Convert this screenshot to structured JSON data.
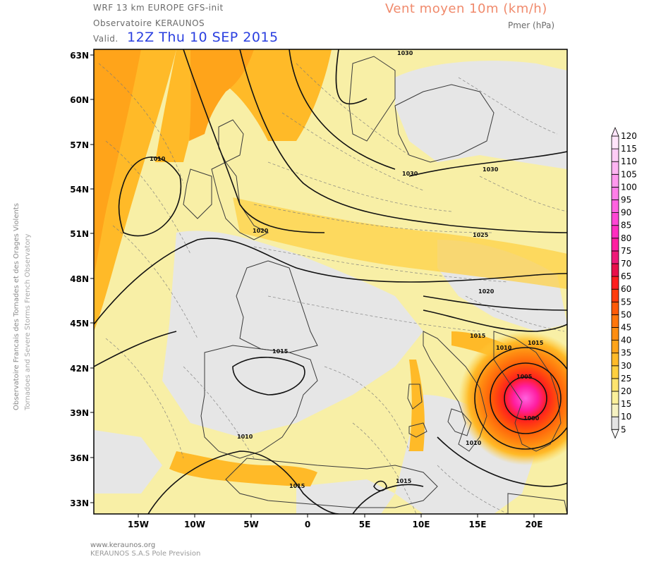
{
  "header": {
    "model_line": "WRF 13 km EUROPE  GFS-init",
    "observatory": "Observatoire KERAUNOS",
    "valid_label": "Valid.",
    "valid_date": "12Z Thu 10 SEP 2015",
    "title": "Vent moyen 10m (km/h)",
    "subtitle": "Pmer (hPa)"
  },
  "side_text": {
    "line1": "Observatoire Francais des Tornades et des Orages Violents",
    "line2": "Tornadoes and Severe Storms French Observatory"
  },
  "footer": {
    "url": "www.keraunos.org",
    "company": "KERAUNOS S.A.S Pole Prevision"
  },
  "map": {
    "lat_labels": [
      "63N",
      "60N",
      "57N",
      "54N",
      "51N",
      "48N",
      "45N",
      "42N",
      "39N",
      "36N",
      "33N"
    ],
    "lon_labels": [
      "15W",
      "10W",
      "5W",
      "0",
      "5E",
      "10E",
      "15E",
      "20E"
    ],
    "isobar_labels": [
      "1030",
      "1010",
      "1030",
      "1030",
      "1020",
      "1025",
      "1020",
      "1015",
      "1010",
      "1015",
      "1015",
      "1010",
      "1005",
      "1000",
      "1010",
      "1015",
      "1015",
      "1015"
    ]
  },
  "colorbar": {
    "values": [
      "5",
      "10",
      "15",
      "20",
      "25",
      "30",
      "35",
      "40",
      "45",
      "50",
      "55",
      "60",
      "65",
      "70",
      "75",
      "80",
      "85",
      "90",
      "95",
      "100",
      "105",
      "110",
      "115",
      "120"
    ],
    "colors": [
      "#ffffff",
      "#e4e4e4",
      "#f6f2c2",
      "#fbf09a",
      "#ffe46e",
      "#ffd040",
      "#ffba28",
      "#ffa41a",
      "#ff8e12",
      "#ff760c",
      "#ff5a08",
      "#ff3c0c",
      "#ff1e1e",
      "#e8104a",
      "#ee1a78",
      "#ff1ea0",
      "#ff2ec0",
      "#ff46d4",
      "#ff62e0",
      "#ff7ee8",
      "#ff98ee",
      "#ffb4f2",
      "#ffccf6",
      "#ffe4fa"
    ]
  }
}
